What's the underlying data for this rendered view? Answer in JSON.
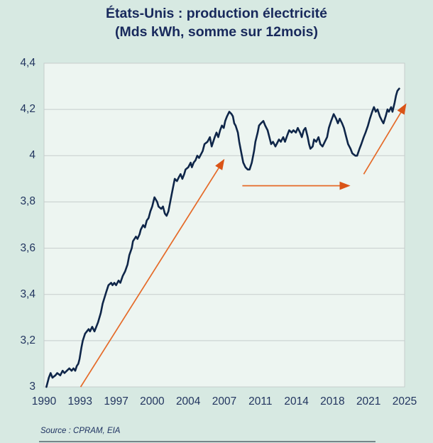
{
  "title": {
    "line1": "États-Unis : production électricité",
    "line2": "(Mds kWh, somme sur 12mois)"
  },
  "source": "Source : CPRAM, EIA",
  "colors": {
    "page_bg": "#d7e9e2",
    "plot_bg": "#edf5f1",
    "grid": "#c6cdcc",
    "line": "#0f2649",
    "arrow": "#e56a28",
    "arrow_head": "#da5417",
    "text": "#1b2d5e"
  },
  "chart_data": {
    "type": "line",
    "title": "États-Unis : production électricité (Mds kWh, somme sur 12mois)",
    "xlabel": "",
    "ylabel": "",
    "grid": "horizontal",
    "legend": "none",
    "ylim": [
      3.0,
      4.4
    ],
    "y_tick_labels": [
      {
        "label": "4,4",
        "value": 4.4
      },
      {
        "label": "4,2",
        "value": 4.2
      },
      {
        "label": "4",
        "value": 4.0
      },
      {
        "label": "3,8",
        "value": 3.8
      },
      {
        "label": "3,6",
        "value": 3.6
      },
      {
        "label": "3,4",
        "value": 3.4
      },
      {
        "label": "3,2",
        "value": 3.2
      },
      {
        "label": "3",
        "value": 3.0
      }
    ],
    "x_tick_labels": [
      {
        "label": "1990",
        "year": 1990
      },
      {
        "label": "1993",
        "year": 1993
      },
      {
        "label": "1997",
        "year": 1997
      },
      {
        "label": "2000",
        "year": 2000
      },
      {
        "label": "2004",
        "year": 2004
      },
      {
        "label": "2007",
        "year": 2007
      },
      {
        "label": "2011",
        "year": 2011
      },
      {
        "label": "2014",
        "year": 2014
      },
      {
        "label": "2018",
        "year": 2018
      },
      {
        "label": "2021",
        "year": 2021
      },
      {
        "label": "2025",
        "year": 2025
      }
    ],
    "series": [
      {
        "name": "Production électricité États-Unis, Mds kWh, somme sur 12 mois",
        "points": [
          [
            1990.2,
            3.0
          ],
          [
            1990.4,
            3.04
          ],
          [
            1990.55,
            3.06
          ],
          [
            1990.7,
            3.04
          ],
          [
            1990.95,
            3.05
          ],
          [
            1991.1,
            3.06
          ],
          [
            1991.35,
            3.05
          ],
          [
            1991.55,
            3.07
          ],
          [
            1991.7,
            3.06
          ],
          [
            1991.9,
            3.07
          ],
          [
            1992.1,
            3.08
          ],
          [
            1992.3,
            3.07
          ],
          [
            1992.45,
            3.08
          ],
          [
            1992.6,
            3.07
          ],
          [
            1992.72,
            3.09
          ],
          [
            1992.85,
            3.1
          ],
          [
            1992.95,
            3.12
          ],
          [
            1993.15,
            3.17
          ],
          [
            1993.3,
            3.2
          ],
          [
            1993.55,
            3.23
          ],
          [
            1993.95,
            3.25
          ],
          [
            1994.1,
            3.24
          ],
          [
            1994.35,
            3.26
          ],
          [
            1994.6,
            3.24
          ],
          [
            1995.0,
            3.28
          ],
          [
            1995.3,
            3.32
          ],
          [
            1995.5,
            3.36
          ],
          [
            1995.9,
            3.41
          ],
          [
            1996.15,
            3.44
          ],
          [
            1996.45,
            3.45
          ],
          [
            1996.6,
            3.44
          ],
          [
            1996.8,
            3.45
          ],
          [
            1997.0,
            3.44
          ],
          [
            1997.2,
            3.46
          ],
          [
            1997.35,
            3.45
          ],
          [
            1997.55,
            3.48
          ],
          [
            1997.75,
            3.5
          ],
          [
            1997.95,
            3.53
          ],
          [
            1998.1,
            3.57
          ],
          [
            1998.3,
            3.6
          ],
          [
            1998.4,
            3.63
          ],
          [
            1998.65,
            3.65
          ],
          [
            1998.78,
            3.64
          ],
          [
            1998.95,
            3.66
          ],
          [
            1999.05,
            3.68
          ],
          [
            1999.25,
            3.7
          ],
          [
            1999.4,
            3.69
          ],
          [
            1999.55,
            3.72
          ],
          [
            1999.7,
            3.73
          ],
          [
            1999.85,
            3.76
          ],
          [
            2000.0,
            3.78
          ],
          [
            2000.25,
            3.82
          ],
          [
            2000.55,
            3.8
          ],
          [
            2000.7,
            3.78
          ],
          [
            2001.0,
            3.77
          ],
          [
            2001.2,
            3.78
          ],
          [
            2001.4,
            3.75
          ],
          [
            2001.6,
            3.74
          ],
          [
            2001.8,
            3.76
          ],
          [
            2002.05,
            3.81
          ],
          [
            2002.3,
            3.86
          ],
          [
            2002.5,
            3.9
          ],
          [
            2002.75,
            3.89
          ],
          [
            2003.0,
            3.91
          ],
          [
            2003.15,
            3.92
          ],
          [
            2003.35,
            3.9
          ],
          [
            2003.55,
            3.92
          ],
          [
            2003.7,
            3.94
          ],
          [
            2004.0,
            3.95
          ],
          [
            2004.2,
            3.97
          ],
          [
            2004.3,
            3.95
          ],
          [
            2004.45,
            3.97
          ],
          [
            2004.6,
            3.98
          ],
          [
            2004.75,
            4.0
          ],
          [
            2004.9,
            3.99
          ],
          [
            2005.2,
            4.02
          ],
          [
            2005.35,
            4.05
          ],
          [
            2005.6,
            4.06
          ],
          [
            2005.8,
            4.08
          ],
          [
            2005.95,
            4.04
          ],
          [
            2006.2,
            4.08
          ],
          [
            2006.35,
            4.1
          ],
          [
            2006.5,
            4.08
          ],
          [
            2006.65,
            4.11
          ],
          [
            2006.8,
            4.13
          ],
          [
            2006.95,
            4.12
          ],
          [
            2007.1,
            4.15
          ],
          [
            2007.3,
            4.17
          ],
          [
            2007.55,
            4.19
          ],
          [
            2007.8,
            4.18
          ],
          [
            2007.95,
            4.17
          ],
          [
            2008.1,
            4.14
          ],
          [
            2008.25,
            4.13
          ],
          [
            2008.5,
            4.1
          ],
          [
            2008.65,
            4.06
          ],
          [
            2008.9,
            4.01
          ],
          [
            2009.1,
            3.97
          ],
          [
            2009.35,
            3.95
          ],
          [
            2009.6,
            3.94
          ],
          [
            2009.8,
            3.94
          ],
          [
            2010.05,
            3.97
          ],
          [
            2010.3,
            4.02
          ],
          [
            2010.45,
            4.06
          ],
          [
            2010.7,
            4.1
          ],
          [
            2010.85,
            4.13
          ],
          [
            2011.05,
            4.14
          ],
          [
            2011.25,
            4.15
          ],
          [
            2011.4,
            4.13
          ],
          [
            2011.6,
            4.11
          ],
          [
            2011.75,
            4.08
          ],
          [
            2011.9,
            4.05
          ],
          [
            2012.05,
            4.06
          ],
          [
            2012.25,
            4.04
          ],
          [
            2012.35,
            4.05
          ],
          [
            2012.55,
            4.07
          ],
          [
            2012.7,
            4.06
          ],
          [
            2012.9,
            4.08
          ],
          [
            2013.05,
            4.06
          ],
          [
            2013.25,
            4.09
          ],
          [
            2013.4,
            4.11
          ],
          [
            2013.6,
            4.1
          ],
          [
            2013.75,
            4.11
          ],
          [
            2013.95,
            4.1
          ],
          [
            2014.15,
            4.12
          ],
          [
            2014.4,
            4.1
          ],
          [
            2014.6,
            4.08
          ],
          [
            2014.8,
            4.11
          ],
          [
            2015.0,
            4.12
          ],
          [
            2015.25,
            4.08
          ],
          [
            2015.4,
            4.05
          ],
          [
            2015.55,
            4.03
          ],
          [
            2015.8,
            4.04
          ],
          [
            2015.95,
            4.07
          ],
          [
            2016.2,
            4.06
          ],
          [
            2016.45,
            4.08
          ],
          [
            2016.65,
            4.05
          ],
          [
            2016.9,
            4.04
          ],
          [
            2017.15,
            4.06
          ],
          [
            2017.4,
            4.08
          ],
          [
            2017.6,
            4.12
          ],
          [
            2017.85,
            4.15
          ],
          [
            2018.1,
            4.18
          ],
          [
            2018.3,
            4.16
          ],
          [
            2018.45,
            4.14
          ],
          [
            2018.6,
            4.16
          ],
          [
            2018.8,
            4.14
          ],
          [
            2018.95,
            4.12
          ],
          [
            2019.1,
            4.09
          ],
          [
            2019.3,
            4.05
          ],
          [
            2019.5,
            4.03
          ],
          [
            2019.65,
            4.01
          ],
          [
            2019.9,
            4.0
          ],
          [
            2020.05,
            4.0
          ],
          [
            2020.25,
            4.03
          ],
          [
            2020.4,
            4.05
          ],
          [
            2020.6,
            4.08
          ],
          [
            2020.75,
            4.1
          ],
          [
            2020.95,
            4.13
          ],
          [
            2021.15,
            4.16
          ],
          [
            2021.4,
            4.19
          ],
          [
            2021.6,
            4.21
          ],
          [
            2021.8,
            4.19
          ],
          [
            2022.0,
            4.2
          ],
          [
            2022.25,
            4.17
          ],
          [
            2022.5,
            4.15
          ],
          [
            2022.65,
            4.14
          ],
          [
            2022.9,
            4.17
          ],
          [
            2023.1,
            4.2
          ],
          [
            2023.25,
            4.19
          ],
          [
            2023.5,
            4.21
          ],
          [
            2023.65,
            4.19
          ],
          [
            2023.9,
            4.23
          ],
          [
            2024.05,
            4.26
          ],
          [
            2024.2,
            4.28
          ],
          [
            2024.4,
            4.29
          ]
        ]
      }
    ],
    "annotations": [
      {
        "type": "arrow",
        "name": "trend-rise-1993-2007",
        "from": [
          1993.06,
          3.0
        ],
        "to": [
          2006.94,
          3.98
        ]
      },
      {
        "type": "arrow",
        "name": "trend-flat-2009-2019",
        "from": [
          2009.0,
          3.87
        ],
        "to": [
          2019.35,
          3.87
        ]
      },
      {
        "type": "arrow",
        "name": "trend-rise-2020-2025",
        "from": [
          2020.6,
          3.92
        ],
        "to": [
          2025.1,
          4.22
        ]
      }
    ]
  }
}
